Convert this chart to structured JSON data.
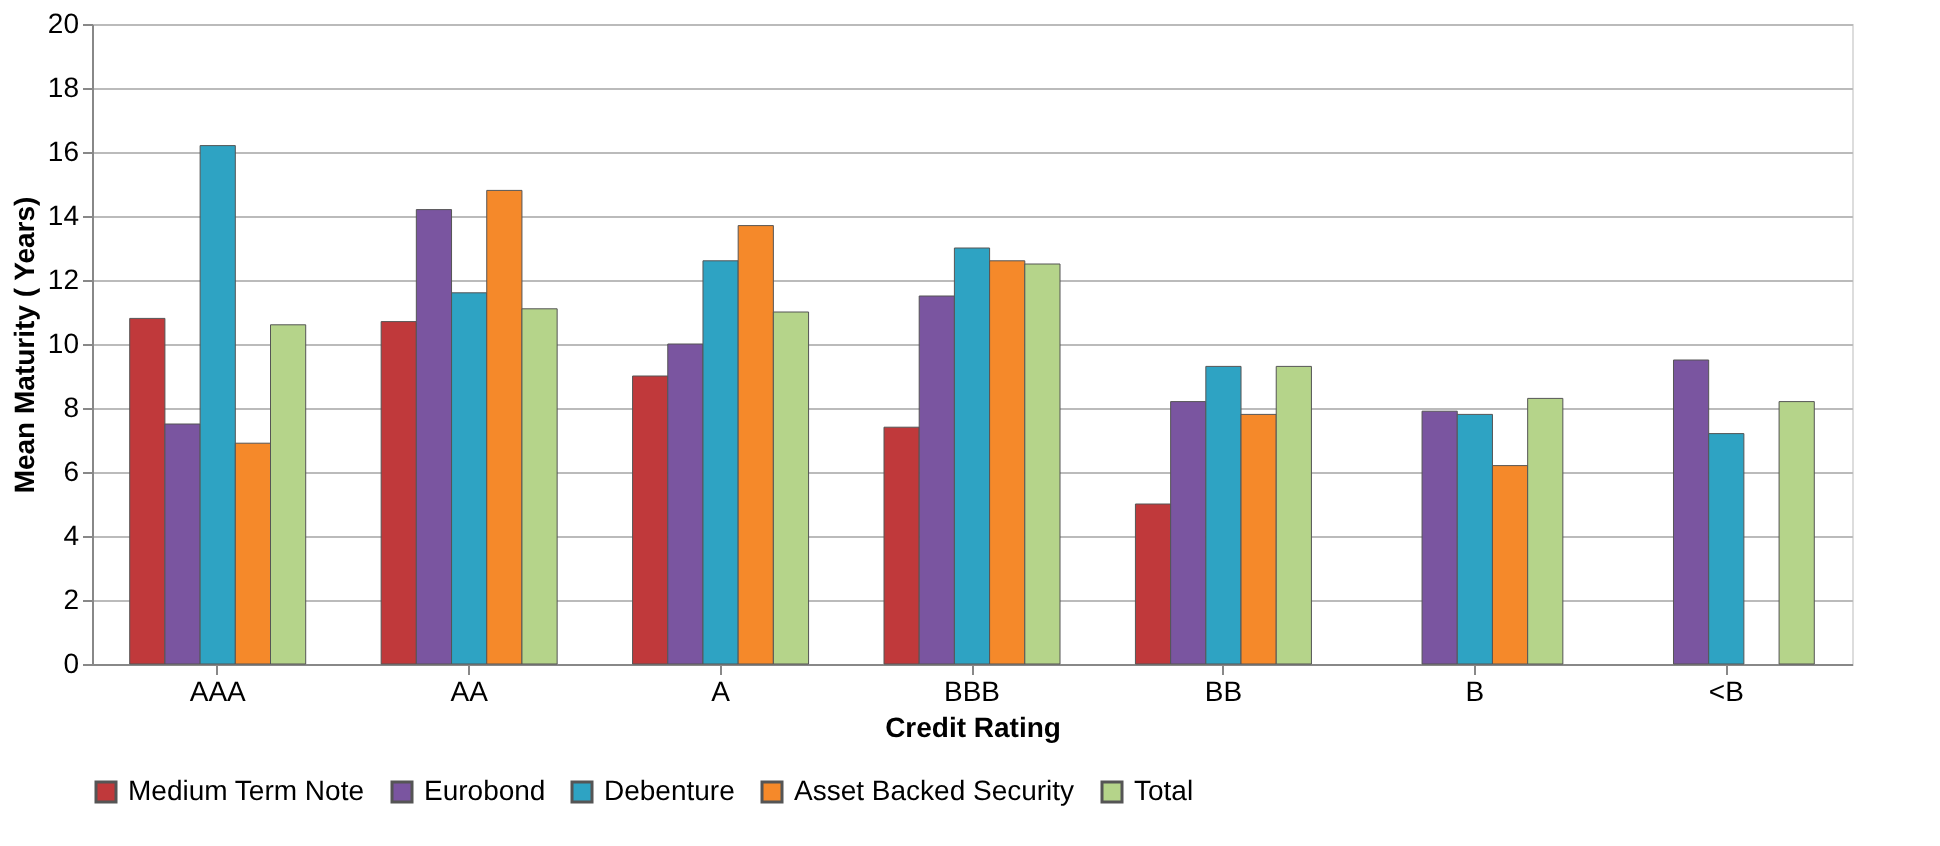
{
  "chart_data": {
    "type": "bar",
    "xlabel": "Credit Rating",
    "ylabel": "Mean Maturity ( Years)",
    "categories": [
      "AAA",
      "AA",
      "A",
      "BBB",
      "BB",
      "B",
      "<B"
    ],
    "series": [
      {
        "name": "Medium Term Note",
        "color": "#c0393b",
        "values": [
          10.8,
          10.7,
          9.0,
          7.4,
          5.0,
          null,
          null
        ]
      },
      {
        "name": "Eurobond",
        "color": "#7a55a0",
        "values": [
          7.5,
          14.2,
          10.0,
          11.5,
          8.2,
          7.9,
          9.5
        ]
      },
      {
        "name": "Debenture",
        "color": "#2ea3c3",
        "values": [
          16.2,
          11.6,
          12.6,
          13.0,
          9.3,
          7.8,
          7.2
        ]
      },
      {
        "name": "Asset Backed Security",
        "color": "#f5892a",
        "values": [
          6.9,
          14.8,
          13.7,
          12.6,
          7.8,
          6.2,
          null
        ]
      },
      {
        "name": "Total",
        "color": "#b5d48a",
        "values": [
          10.6,
          11.1,
          11.0,
          12.5,
          9.3,
          8.3,
          8.2
        ]
      }
    ],
    "ylim": [
      0,
      20
    ],
    "yticks": [
      0,
      2,
      4,
      6,
      8,
      10,
      12,
      14,
      16,
      18,
      20
    ],
    "grid": "y",
    "legend": "bottom"
  }
}
